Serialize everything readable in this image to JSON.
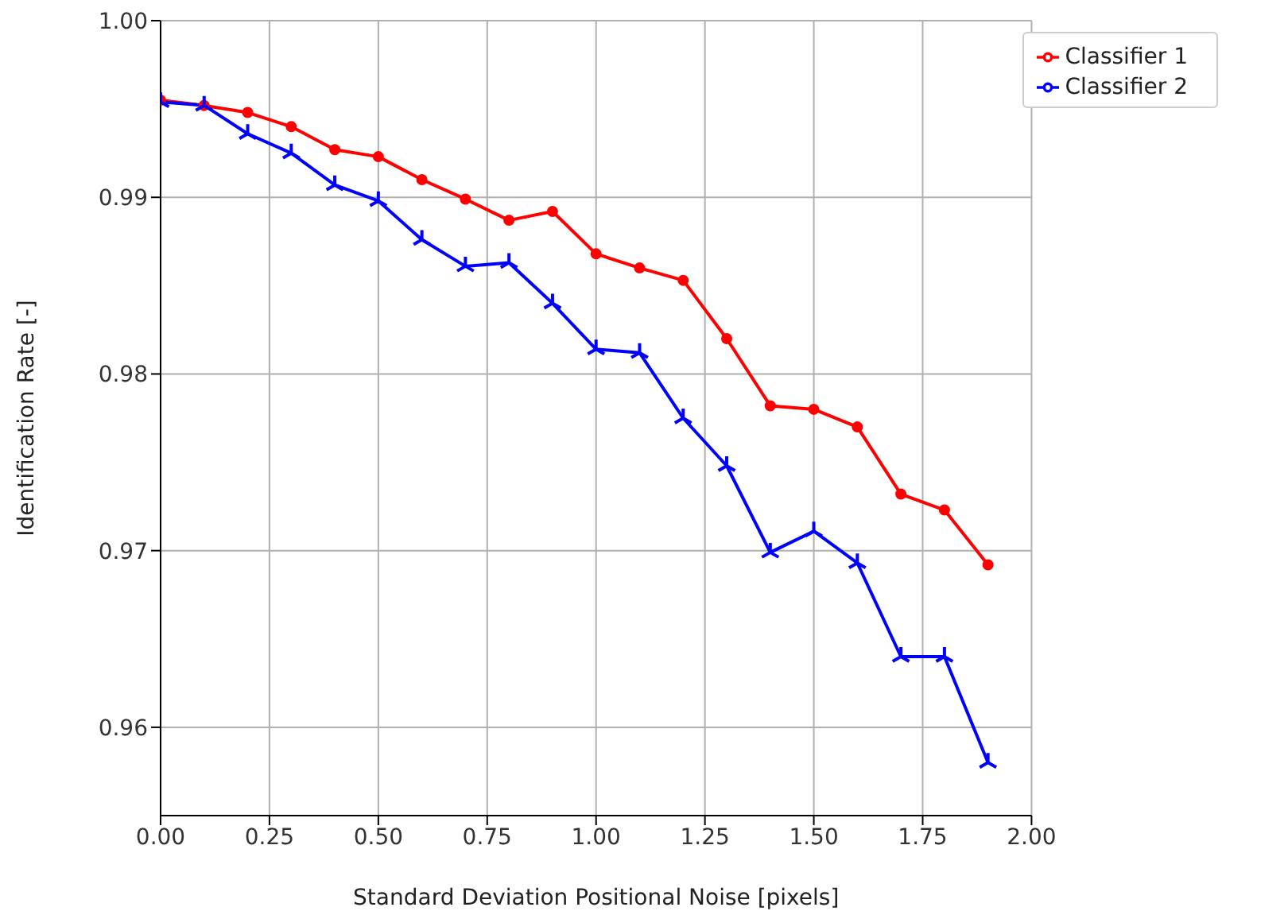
{
  "chart_data": {
    "type": "line",
    "xlabel": "Standard Deviation Positional Noise [pixels]",
    "ylabel": "Identification Rate [-]",
    "x": [
      0,
      0.1,
      0.2,
      0.3,
      0.4,
      0.5,
      0.6,
      0.7,
      0.8,
      0.9,
      1.0,
      1.1,
      1.2,
      1.3,
      1.4,
      1.5,
      1.6,
      1.7,
      1.8,
      1.9
    ],
    "series": [
      {
        "name": "Classifier 1",
        "color": "#ff0000",
        "marker": "circle",
        "values": [
          0.9955,
          0.9952,
          0.9948,
          0.994,
          0.9927,
          0.9923,
          0.991,
          0.9899,
          0.9887,
          0.9892,
          0.9868,
          0.986,
          0.9853,
          0.982,
          0.9782,
          0.978,
          0.977,
          0.9732,
          0.9723,
          0.9692
        ]
      },
      {
        "name": "Classifier 2",
        "color": "#0000ff",
        "marker": "cross",
        "values": [
          0.9954,
          0.9952,
          0.9936,
          0.9925,
          0.9907,
          0.9898,
          0.9876,
          0.9861,
          0.9863,
          0.984,
          0.9814,
          0.9812,
          0.9775,
          0.9748,
          0.9699,
          0.9711,
          0.9693,
          0.964,
          0.964,
          0.958
        ]
      }
    ],
    "xlim": [
      0,
      2
    ],
    "xticks": [
      {
        "value": 0,
        "label": "0.00"
      },
      {
        "value": 0.25,
        "label": "0.25"
      },
      {
        "value": 0.5,
        "label": "0.50"
      },
      {
        "value": 0.75,
        "label": "0.75"
      },
      {
        "value": 1,
        "label": "1.00"
      },
      {
        "value": 1.25,
        "label": "1.25"
      },
      {
        "value": 1.5,
        "label": "1.50"
      },
      {
        "value": 1.75,
        "label": "1.75"
      },
      {
        "value": 2,
        "label": "2.00"
      }
    ],
    "ylim": [
      0.955,
      1
    ],
    "yticks": [
      0.96,
      0.97,
      0.98,
      0.99,
      {
        "value": 1,
        "label": "1.00"
      }
    ],
    "grid": true,
    "legend": "top right",
    "line_style": "solid"
  }
}
